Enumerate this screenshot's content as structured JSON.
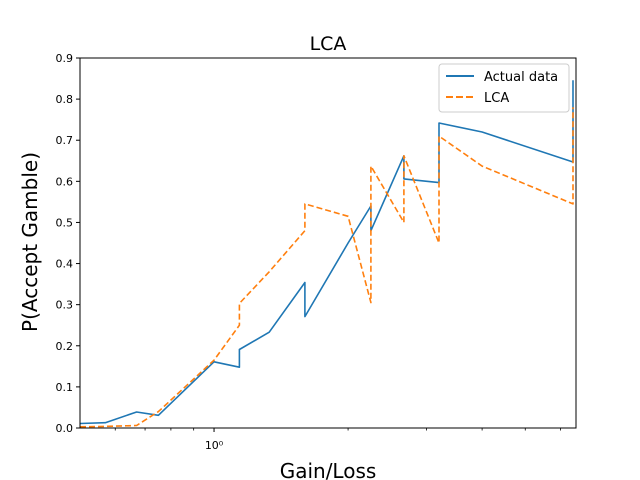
{
  "chart_data": {
    "type": "line",
    "title": "LCA",
    "xlabel": "Gain/Loss",
    "ylabel": "P(Accept Gamble)",
    "xscale": "log",
    "xlim": [
      0.5,
      6.5
    ],
    "ylim": [
      0,
      0.9
    ],
    "x_tick_labels": [
      {
        "value": 1,
        "label": "10⁰"
      }
    ],
    "y_ticks": [
      0.0,
      0.1,
      0.2,
      0.3,
      0.4,
      0.5,
      0.6,
      0.7,
      0.8,
      0.9
    ],
    "y_tick_labels": [
      "0.0",
      "0.1",
      "0.2",
      "0.3",
      "0.4",
      "0.5",
      "0.6",
      "0.7",
      "0.8",
      "0.9"
    ],
    "grid": false,
    "legend_position": "top-right",
    "series": [
      {
        "name": "Actual data",
        "color": "#1f77b4",
        "dash": "solid",
        "x": [
          0.5,
          0.57,
          0.67,
          0.75,
          1.0,
          1.14,
          1.14,
          1.33,
          1.6,
          1.6,
          2.0,
          2.25,
          2.25,
          2.67,
          2.67,
          3.2,
          3.2,
          4.0,
          6.4,
          6.4
        ],
        "y": [
          0.011,
          0.013,
          0.039,
          0.031,
          0.161,
          0.148,
          0.191,
          0.233,
          0.354,
          0.271,
          0.45,
          0.54,
          0.48,
          0.662,
          0.606,
          0.597,
          0.742,
          0.72,
          0.647,
          0.846
        ]
      },
      {
        "name": "LCA",
        "color": "#ff7f0e",
        "dash": "dashed",
        "x": [
          0.5,
          0.57,
          0.67,
          0.75,
          1.0,
          1.14,
          1.14,
          1.33,
          1.6,
          1.6,
          2.0,
          2.25,
          2.25,
          2.67,
          2.67,
          3.2,
          3.2,
          4.0,
          6.4,
          6.4
        ],
        "y": [
          0.003,
          0.004,
          0.006,
          0.04,
          0.165,
          0.25,
          0.303,
          0.38,
          0.48,
          0.545,
          0.515,
          0.305,
          0.637,
          0.5,
          0.662,
          0.45,
          0.71,
          0.637,
          0.545,
          0.78
        ]
      }
    ]
  }
}
